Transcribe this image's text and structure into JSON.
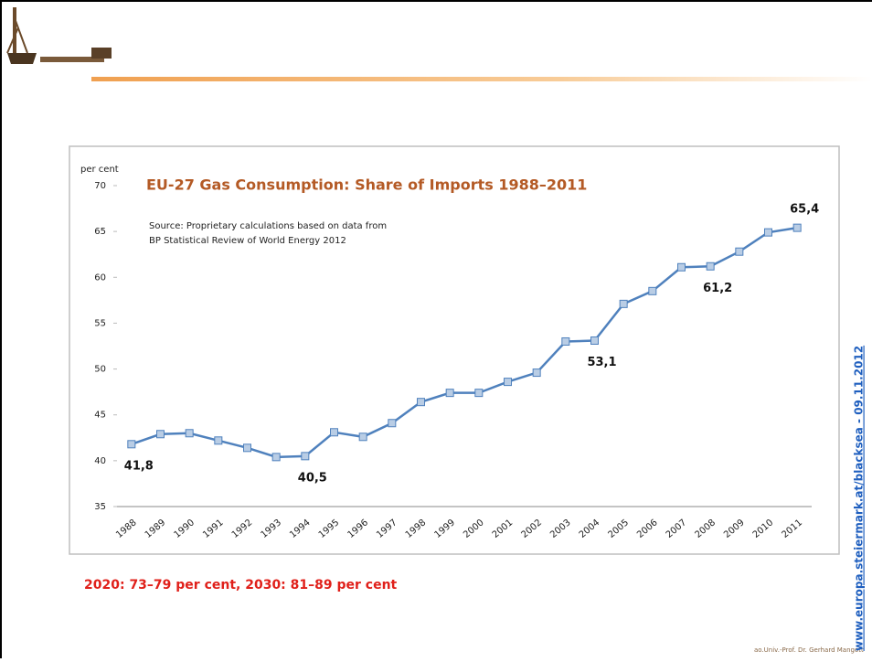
{
  "chart_data": {
    "type": "line",
    "title": "EU-27 Gas Consumption: Share of Imports 1988–2011",
    "y_label": "per cent",
    "notes": [
      "Source: Proprietary calculations based on data from",
      "BP Statistical Review of World Energy 2012"
    ],
    "categories": [
      "1988",
      "1989",
      "1990",
      "1991",
      "1992",
      "1993",
      "1994",
      "1995",
      "1996",
      "1997",
      "1998",
      "1999",
      "2000",
      "2001",
      "2002",
      "2003",
      "2004",
      "2005",
      "2006",
      "2007",
      "2008",
      "2009",
      "2010",
      "2011"
    ],
    "values": [
      41.8,
      42.9,
      43.0,
      42.2,
      41.4,
      40.4,
      40.5,
      43.1,
      42.6,
      44.1,
      46.4,
      47.4,
      47.4,
      48.6,
      49.6,
      53.0,
      53.1,
      57.1,
      58.5,
      61.1,
      61.2,
      62.8,
      64.9,
      65.4
    ],
    "value_labels": [
      "41,8",
      null,
      null,
      null,
      null,
      null,
      "40,5",
      null,
      null,
      null,
      null,
      null,
      null,
      null,
      null,
      null,
      "53,1",
      null,
      null,
      null,
      "61,2",
      null,
      null,
      "65,4"
    ],
    "color": "#4f81bd",
    "marker_fill": "#b9cde5",
    "ylim": [
      35,
      70
    ],
    "yticks": [
      35,
      40,
      45,
      50,
      55,
      60,
      65,
      70
    ],
    "grid": false
  },
  "slide": {
    "note": "2020: 73–79 per cent, 2030: 81–89 per cent",
    "footer": "ao.Univ.-Prof. Dr. Gerhard Mangott",
    "url": "www.europa.steiermark.at/blacksea - 09.11.2012"
  }
}
